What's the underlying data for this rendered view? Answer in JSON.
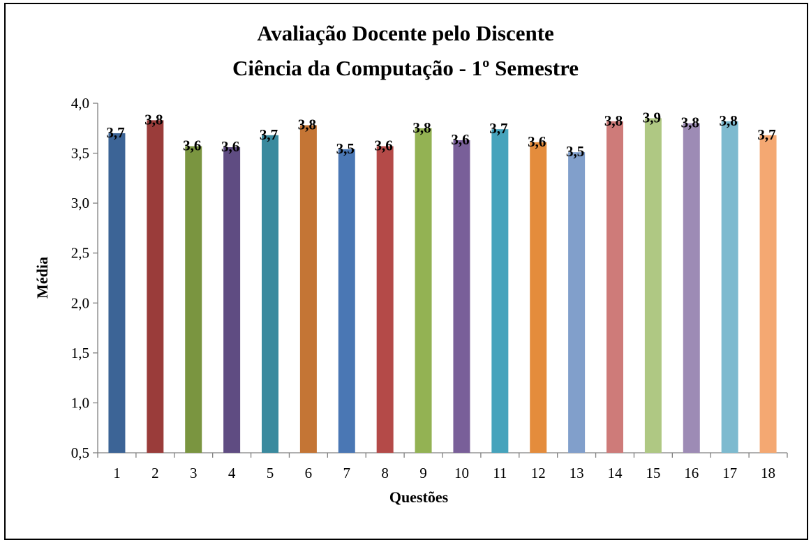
{
  "chart_data": {
    "type": "bar",
    "title": [
      "Avaliação Docente pelo Discente",
      "Ciência da Computação -  1º Semestre"
    ],
    "xlabel": "Questões",
    "ylabel": "Média",
    "categories": [
      "1",
      "2",
      "3",
      "4",
      "5",
      "6",
      "7",
      "8",
      "9",
      "10",
      "11",
      "12",
      "13",
      "14",
      "15",
      "16",
      "17",
      "18"
    ],
    "values": [
      3.7,
      3.83,
      3.57,
      3.56,
      3.68,
      3.78,
      3.54,
      3.57,
      3.75,
      3.63,
      3.74,
      3.61,
      3.51,
      3.82,
      3.85,
      3.8,
      3.82,
      3.68
    ],
    "data_labels": [
      "3,7",
      "3,8",
      "3,6",
      "3,6",
      "3,7",
      "3,8",
      "3,5",
      "3,6",
      "3,8",
      "3,6",
      "3,7",
      "3,6",
      "3,5",
      "3,8",
      "3,9",
      "3,8",
      "3,8",
      "3,7"
    ],
    "ylim": [
      0.5,
      4.0
    ],
    "yticks": [
      0.5,
      1.0,
      1.5,
      2.0,
      2.5,
      3.0,
      3.5,
      4.0
    ],
    "ytick_labels": [
      "0,5",
      "1,0",
      "1,5",
      "2,0",
      "2,5",
      "3,0",
      "3,5",
      "4,0"
    ],
    "grid": false,
    "legend": "none",
    "colors": [
      "#3C6496",
      "#9A3C3A",
      "#7A9540",
      "#5F4C82",
      "#3A8A9E",
      "#C47535",
      "#4A77B4",
      "#B44A48",
      "#93B253",
      "#795F99",
      "#46A3BC",
      "#E48C3C",
      "#819FCB",
      "#CE7B79",
      "#AFC883",
      "#9D8BB5",
      "#7DBACF",
      "#F4A872"
    ]
  }
}
